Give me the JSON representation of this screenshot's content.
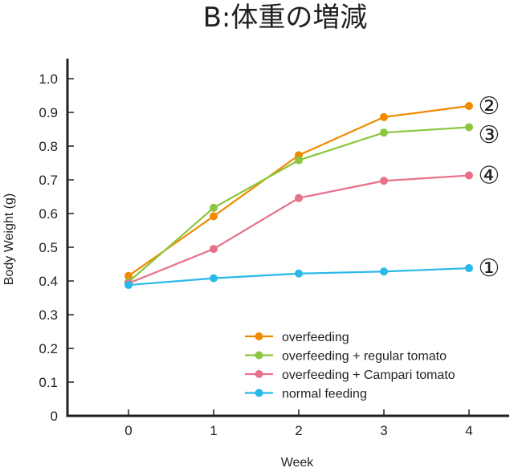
{
  "chart_data": {
    "type": "line",
    "title": "B:体重の増減",
    "xlabel": "Week",
    "ylabel": "Body Weight (g)",
    "x": [
      0,
      1,
      2,
      3,
      4
    ],
    "x_tick_labels": [
      "0",
      "1",
      "2",
      "3",
      "4"
    ],
    "y_tick_labels": [
      "0",
      "0.1",
      "0.2",
      "0.3",
      "0.4",
      "0.5",
      "0.6",
      "0.7",
      "0.8",
      "0.9",
      "1.0"
    ],
    "ylim": [
      0,
      1.0
    ],
    "grid": false,
    "legend_position": "bottom-right",
    "series": [
      {
        "name": "overfeeding",
        "color": "#f08a00",
        "values": [
          0.415,
          0.592,
          0.773,
          0.886,
          0.919
        ],
        "end_label": "②"
      },
      {
        "name": "overfeeding + regular tomato",
        "color": "#8cc63f",
        "values": [
          0.397,
          0.617,
          0.758,
          0.84,
          0.856
        ],
        "end_label": "③"
      },
      {
        "name": "overfeeding + Campari tomato",
        "color": "#e8708a",
        "values": [
          0.393,
          0.495,
          0.646,
          0.697,
          0.713
        ],
        "end_label": "④"
      },
      {
        "name": "normal feeding",
        "color": "#29b8e8",
        "values": [
          0.388,
          0.408,
          0.422,
          0.428,
          0.438
        ],
        "end_label": "①"
      }
    ]
  }
}
